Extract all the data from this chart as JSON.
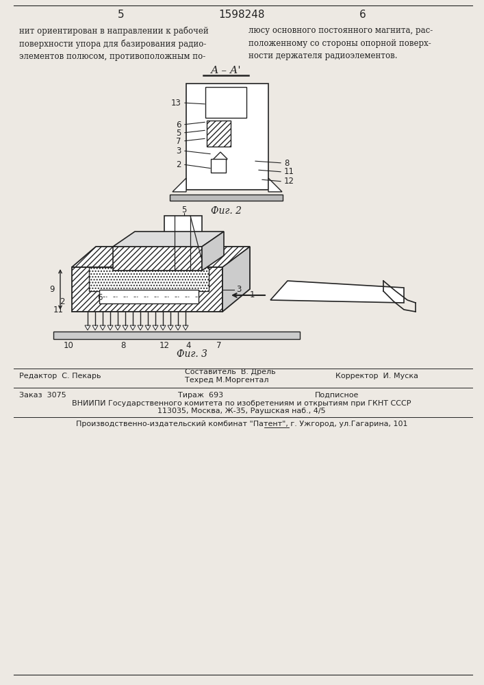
{
  "bg_color": "#ede9e3",
  "page_color": "#ede9e3",
  "header_page_left": "5",
  "header_patent": "1598248",
  "header_page_right": "6",
  "text_left": "нит ориентирован в направлении к рабочей\nповерхности упора для базирования радио-\nэлементов полюсом, противоположным по-",
  "text_right": "люсу основного постоянного магнита, рас-\nположенному со стороны опорной поверх-\nности держателя радиоэлементов.",
  "fig2_label": "А – А'",
  "fig2_caption": "Фиг. 2",
  "fig3_caption": "Фиг. 3",
  "footer_editor": "Редактор  С. Пекарь",
  "footer_composer": "Составитель  В. Дрель",
  "footer_corrector": "Корректор  И. Муска",
  "footer_techred": "Техред М.Моргентал",
  "footer_order": "Заказ  3075",
  "footer_tirazh": "Тираж  693",
  "footer_podpisnoe": "Подписное",
  "footer_vniiipi": "ВНИИПИ Государственного комитета по изобретениям и открытиям при ГКНТ СССР",
  "footer_address": "113035, Москва, Ж-35, Раушская наб., 4/5",
  "footer_proizv": "Производственно-издательский комбинат \"Патент\", г. Ужгород, ул.Гагарина, 101",
  "line_color": "#222222"
}
